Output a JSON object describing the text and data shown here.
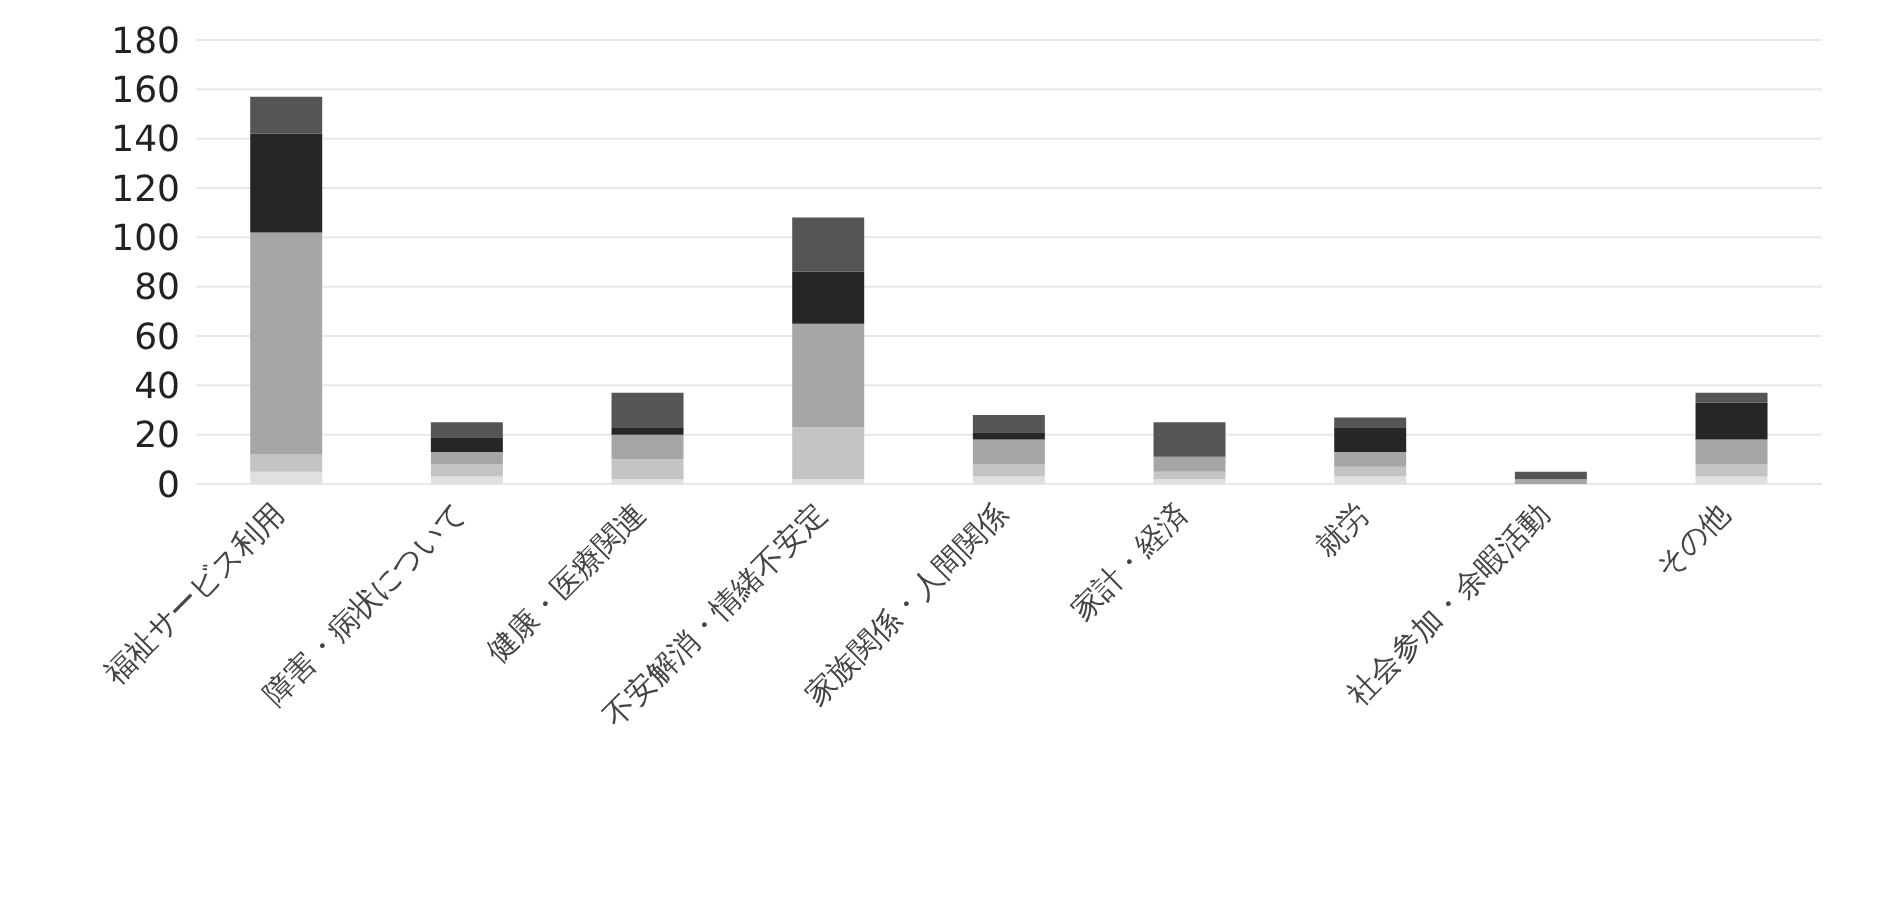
{
  "chart_data": {
    "type": "bar",
    "stacked": true,
    "categories": [
      "福祉サービス利用",
      "障害・病状について",
      "健康・医療関連",
      "不安解消・情緒不安定",
      "家族関係・人間関係",
      "家計・経済",
      "就労",
      "社会参加・余暇活動",
      "その他"
    ],
    "series": [
      {
        "color": "#e0e0e0",
        "values": [
          5,
          3,
          2,
          2,
          3,
          2,
          3,
          0,
          3
        ]
      },
      {
        "color": "#c4c4c4",
        "values": [
          7,
          5,
          8,
          21,
          5,
          3,
          4,
          0,
          5
        ]
      },
      {
        "color": "#a6a6a6",
        "values": [
          90,
          5,
          10,
          42,
          10,
          6,
          6,
          2,
          10
        ]
      },
      {
        "color": "#262626",
        "values": [
          40,
          6,
          3,
          21,
          3,
          0,
          10,
          0,
          15
        ]
      },
      {
        "color": "#555555",
        "values": [
          15,
          6,
          14,
          22,
          7,
          14,
          4,
          3,
          4
        ]
      }
    ],
    "ylim": [
      0,
      180
    ],
    "yticks": [
      0,
      20,
      40,
      60,
      80,
      100,
      120,
      140,
      160,
      180
    ],
    "grid": "y"
  }
}
